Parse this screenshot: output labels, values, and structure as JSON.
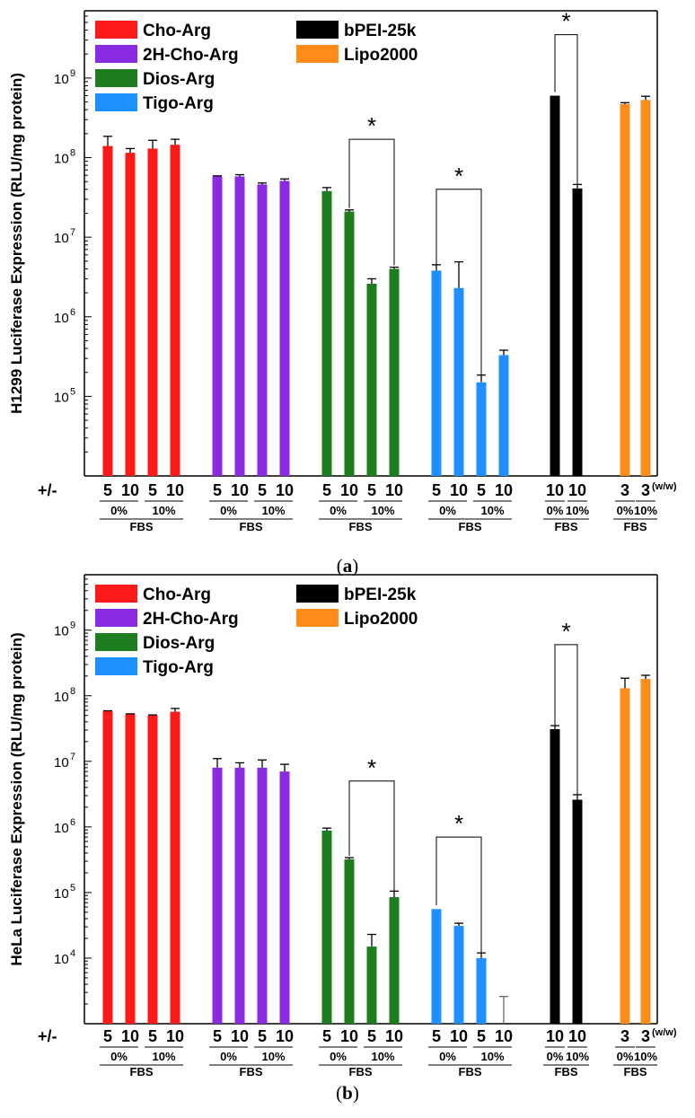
{
  "chart_data": [
    {
      "panel_id": "a",
      "type": "bar",
      "yscale": "log",
      "ylabel": "H1299 Luciferase Expression (RLU/mg protein)",
      "ylim": [
        10000,
        7000000000
      ],
      "yticks": [
        {
          "value": 100000,
          "base": "10",
          "exp": "5"
        },
        {
          "value": 1000000,
          "base": "10",
          "exp": "6"
        },
        {
          "value": 10000000,
          "base": "10",
          "exp": "7"
        },
        {
          "value": 100000000,
          "base": "10",
          "exp": "8"
        },
        {
          "value": 1000000000,
          "base": "10",
          "exp": "9"
        }
      ],
      "legend": [
        {
          "name": "Cho-Arg",
          "color": "#ff1a1a"
        },
        {
          "name": "2H-Cho-Arg",
          "color": "#8a2be2"
        },
        {
          "name": "Dios-Arg",
          "color": "#1e7d1e"
        },
        {
          "name": "Tigo-Arg",
          "color": "#1e90ff"
        },
        {
          "name": "bPEI-25k",
          "color": "#000000"
        },
        {
          "name": "Lipo2000",
          "color": "#ff8c1a"
        }
      ],
      "sign_label": "+/-",
      "groups": [
        {
          "series": "Cho-Arg",
          "color": "#ff1a1a",
          "bars": [
            {
              "ratio": "5",
              "fbs": "0%",
              "value": 140000000,
              "err": 45000000
            },
            {
              "ratio": "10",
              "fbs": "0%",
              "value": 115000000,
              "err": 15000000
            },
            {
              "ratio": "5",
              "fbs": "10%",
              "value": 130000000,
              "err": 35000000
            },
            {
              "ratio": "10",
              "fbs": "10%",
              "value": 145000000,
              "err": 25000000
            }
          ],
          "pct_labels": [
            "0%",
            "10%"
          ],
          "fbs_label": "FBS"
        },
        {
          "series": "2H-Cho-Arg",
          "color": "#8a2be2",
          "bars": [
            {
              "ratio": "5",
              "fbs": "0%",
              "value": 58000000,
              "err": 1000000
            },
            {
              "ratio": "10",
              "fbs": "0%",
              "value": 58000000,
              "err": 3000000
            },
            {
              "ratio": "5",
              "fbs": "10%",
              "value": 46000000,
              "err": 2000000
            },
            {
              "ratio": "10",
              "fbs": "10%",
              "value": 51000000,
              "err": 3000000
            }
          ],
          "pct_labels": [
            "0%",
            "10%"
          ],
          "fbs_label": "FBS"
        },
        {
          "series": "Dios-Arg",
          "color": "#1e7d1e",
          "bars": [
            {
              "ratio": "5",
              "fbs": "0%",
              "value": 38000000,
              "err": 4000000
            },
            {
              "ratio": "10",
              "fbs": "0%",
              "value": 21000000,
              "err": 1000000
            },
            {
              "ratio": "5",
              "fbs": "10%",
              "value": 2600000,
              "err": 400000
            },
            {
              "ratio": "10",
              "fbs": "10%",
              "value": 4000000,
              "err": 200000
            }
          ],
          "pct_labels": [
            "0%",
            "10%"
          ],
          "fbs_label": "FBS"
        },
        {
          "series": "Tigo-Arg",
          "color": "#1e90ff",
          "bars": [
            {
              "ratio": "5",
              "fbs": "0%",
              "value": 3800000,
              "err": 700000
            },
            {
              "ratio": "10",
              "fbs": "0%",
              "value": 2300000,
              "err": 2600000
            },
            {
              "ratio": "5",
              "fbs": "10%",
              "value": 150000,
              "err": 35000
            },
            {
              "ratio": "10",
              "fbs": "10%",
              "value": 330000,
              "err": 50000
            }
          ],
          "pct_labels": [
            "0%",
            "10%"
          ],
          "fbs_label": "FBS"
        },
        {
          "series": "bPEI-25k",
          "color": "#000000",
          "bars": [
            {
              "ratio": "10",
              "fbs": "0%",
              "value": 600000000,
              "err": 0
            },
            {
              "ratio": "10",
              "fbs": "10%",
              "value": 41000000,
              "err": 5000000
            }
          ],
          "pct_labels": [
            "0%",
            "10%"
          ],
          "fbs_label": "FBS"
        },
        {
          "series": "Lipo2000",
          "color": "#ff8c1a",
          "bars": [
            {
              "ratio": "3",
              "fbs": "0%",
              "value": 470000000,
              "err": 20000000
            },
            {
              "ratio": "3",
              "fbs": "10%",
              "value": 530000000,
              "err": 60000000
            }
          ],
          "pct_labels": [
            "0%",
            "10%"
          ],
          "fbs_label": "FBS",
          "suffix": "(w/w)"
        }
      ],
      "significance": [
        {
          "group": 2,
          "from": 1,
          "to": 3,
          "label": "*",
          "top": 170000000
        },
        {
          "group": 3,
          "from": 0,
          "to": 2,
          "label": "*",
          "top": 40000000
        },
        {
          "group": 4,
          "from": 0,
          "to": 1,
          "label": "*",
          "top": 3500000000
        }
      ],
      "caption_letter": "a"
    },
    {
      "panel_id": "b",
      "type": "bar",
      "yscale": "log",
      "ylabel": "HeLa Luciferase Expression (RLU/mg protein)",
      "ylim": [
        1000,
        7000000000
      ],
      "yticks": [
        {
          "value": 10000,
          "base": "10",
          "exp": "4"
        },
        {
          "value": 100000,
          "base": "10",
          "exp": "5"
        },
        {
          "value": 1000000,
          "base": "10",
          "exp": "6"
        },
        {
          "value": 10000000,
          "base": "10",
          "exp": "7"
        },
        {
          "value": 100000000,
          "base": "10",
          "exp": "8"
        },
        {
          "value": 1000000000,
          "base": "10",
          "exp": "9"
        }
      ],
      "legend": [
        {
          "name": "Cho-Arg",
          "color": "#ff1a1a"
        },
        {
          "name": "2H-Cho-Arg",
          "color": "#8a2be2"
        },
        {
          "name": "Dios-Arg",
          "color": "#1e7d1e"
        },
        {
          "name": "Tigo-Arg",
          "color": "#1e90ff"
        },
        {
          "name": "bPEI-25k",
          "color": "#000000"
        },
        {
          "name": "Lipo2000",
          "color": "#ff8c1a"
        }
      ],
      "sign_label": "+/-",
      "groups": [
        {
          "series": "Cho-Arg",
          "color": "#ff1a1a",
          "bars": [
            {
              "ratio": "5",
              "fbs": "0%",
              "value": 58000000,
              "err": 1000000
            },
            {
              "ratio": "10",
              "fbs": "0%",
              "value": 52000000,
              "err": 1000000
            },
            {
              "ratio": "5",
              "fbs": "10%",
              "value": 50000000,
              "err": 1000000
            },
            {
              "ratio": "10",
              "fbs": "10%",
              "value": 57000000,
              "err": 7000000
            }
          ],
          "pct_labels": [
            "0%",
            "10%"
          ],
          "fbs_label": "FBS"
        },
        {
          "series": "2H-Cho-Arg",
          "color": "#8a2be2",
          "bars": [
            {
              "ratio": "5",
              "fbs": "0%",
              "value": 8000000,
              "err": 3000000
            },
            {
              "ratio": "10",
              "fbs": "0%",
              "value": 8000000,
              "err": 1500000
            },
            {
              "ratio": "5",
              "fbs": "10%",
              "value": 8000000,
              "err": 2500000
            },
            {
              "ratio": "10",
              "fbs": "10%",
              "value": 7000000,
              "err": 2000000
            }
          ],
          "pct_labels": [
            "0%",
            "10%"
          ],
          "fbs_label": "FBS"
        },
        {
          "series": "Dios-Arg",
          "color": "#1e7d1e",
          "bars": [
            {
              "ratio": "5",
              "fbs": "0%",
              "value": 880000,
              "err": 80000
            },
            {
              "ratio": "10",
              "fbs": "0%",
              "value": 320000,
              "err": 20000
            },
            {
              "ratio": "5",
              "fbs": "10%",
              "value": 15000,
              "err": 8000
            },
            {
              "ratio": "10",
              "fbs": "10%",
              "value": 85000,
              "err": 20000
            }
          ],
          "pct_labels": [
            "0%",
            "10%"
          ],
          "fbs_label": "FBS"
        },
        {
          "series": "Tigo-Arg",
          "color": "#1e90ff",
          "bars": [
            {
              "ratio": "5",
              "fbs": "0%",
              "value": 56000,
              "err": 0
            },
            {
              "ratio": "10",
              "fbs": "0%",
              "value": 31000,
              "err": 3000
            },
            {
              "ratio": "5",
              "fbs": "10%",
              "value": 10000,
              "err": 2000
            },
            {
              "ratio": "10",
              "fbs": "10%",
              "value": 1000,
              "err": 1600
            }
          ],
          "pct_labels": [
            "0%",
            "10%"
          ],
          "fbs_label": "FBS"
        },
        {
          "series": "bPEI-25k",
          "color": "#000000",
          "bars": [
            {
              "ratio": "10",
              "fbs": "0%",
              "value": 31000000,
              "err": 4000000
            },
            {
              "ratio": "10",
              "fbs": "10%",
              "value": 2600000,
              "err": 500000
            }
          ],
          "pct_labels": [
            "0%",
            "10%"
          ],
          "fbs_label": "FBS"
        },
        {
          "series": "Lipo2000",
          "color": "#ff8c1a",
          "bars": [
            {
              "ratio": "3",
              "fbs": "0%",
              "value": 130000000,
              "err": 55000000
            },
            {
              "ratio": "3",
              "fbs": "10%",
              "value": 180000000,
              "err": 25000000
            }
          ],
          "pct_labels": [
            "0%",
            "10%"
          ],
          "fbs_label": "FBS",
          "suffix": "(w/w)"
        }
      ],
      "significance": [
        {
          "group": 2,
          "from": 1,
          "to": 3,
          "label": "*",
          "top": 5000000
        },
        {
          "group": 3,
          "from": 0,
          "to": 2,
          "label": "*",
          "top": 700000
        },
        {
          "group": 4,
          "from": 0,
          "to": 1,
          "label": "*",
          "top": 600000000
        }
      ],
      "caption_letter": "b"
    }
  ]
}
